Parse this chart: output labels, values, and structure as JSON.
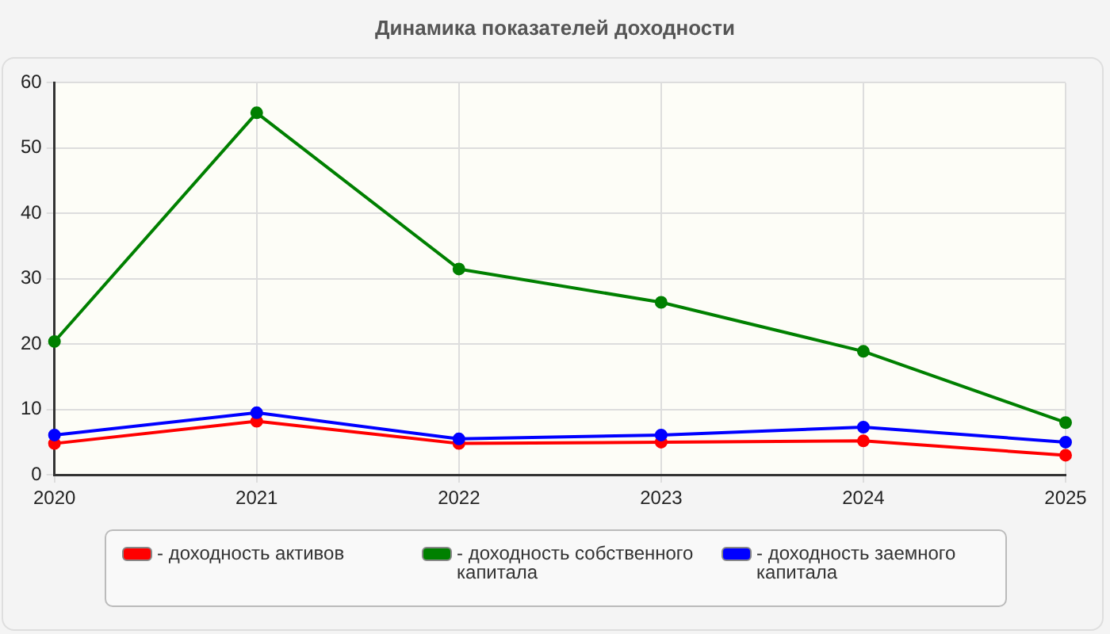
{
  "chart_data": {
    "type": "line",
    "title": "Динамика показателей доходности",
    "categories": [
      "2020",
      "2021",
      "2022",
      "2023",
      "2024",
      "2025"
    ],
    "series": [
      {
        "name": "- доходность активов",
        "color": "#ff0000",
        "values": [
          4.8,
          8.2,
          4.8,
          5.0,
          5.2,
          3.0
        ]
      },
      {
        "name": "- доходность собственного капитала",
        "color": "#008000",
        "values": [
          20.4,
          55.4,
          31.5,
          26.4,
          18.9,
          8.0
        ]
      },
      {
        "name": "- доходность заемного капитала",
        "color": "#0000ff",
        "values": [
          6.1,
          9.5,
          5.5,
          6.1,
          7.3,
          5.0
        ]
      }
    ],
    "ylim": [
      0,
      60
    ],
    "yticks": [
      0,
      10,
      20,
      30,
      40,
      50,
      60
    ],
    "grid": true,
    "legend": "bottom",
    "marker": "circle",
    "line_style": "solid"
  }
}
